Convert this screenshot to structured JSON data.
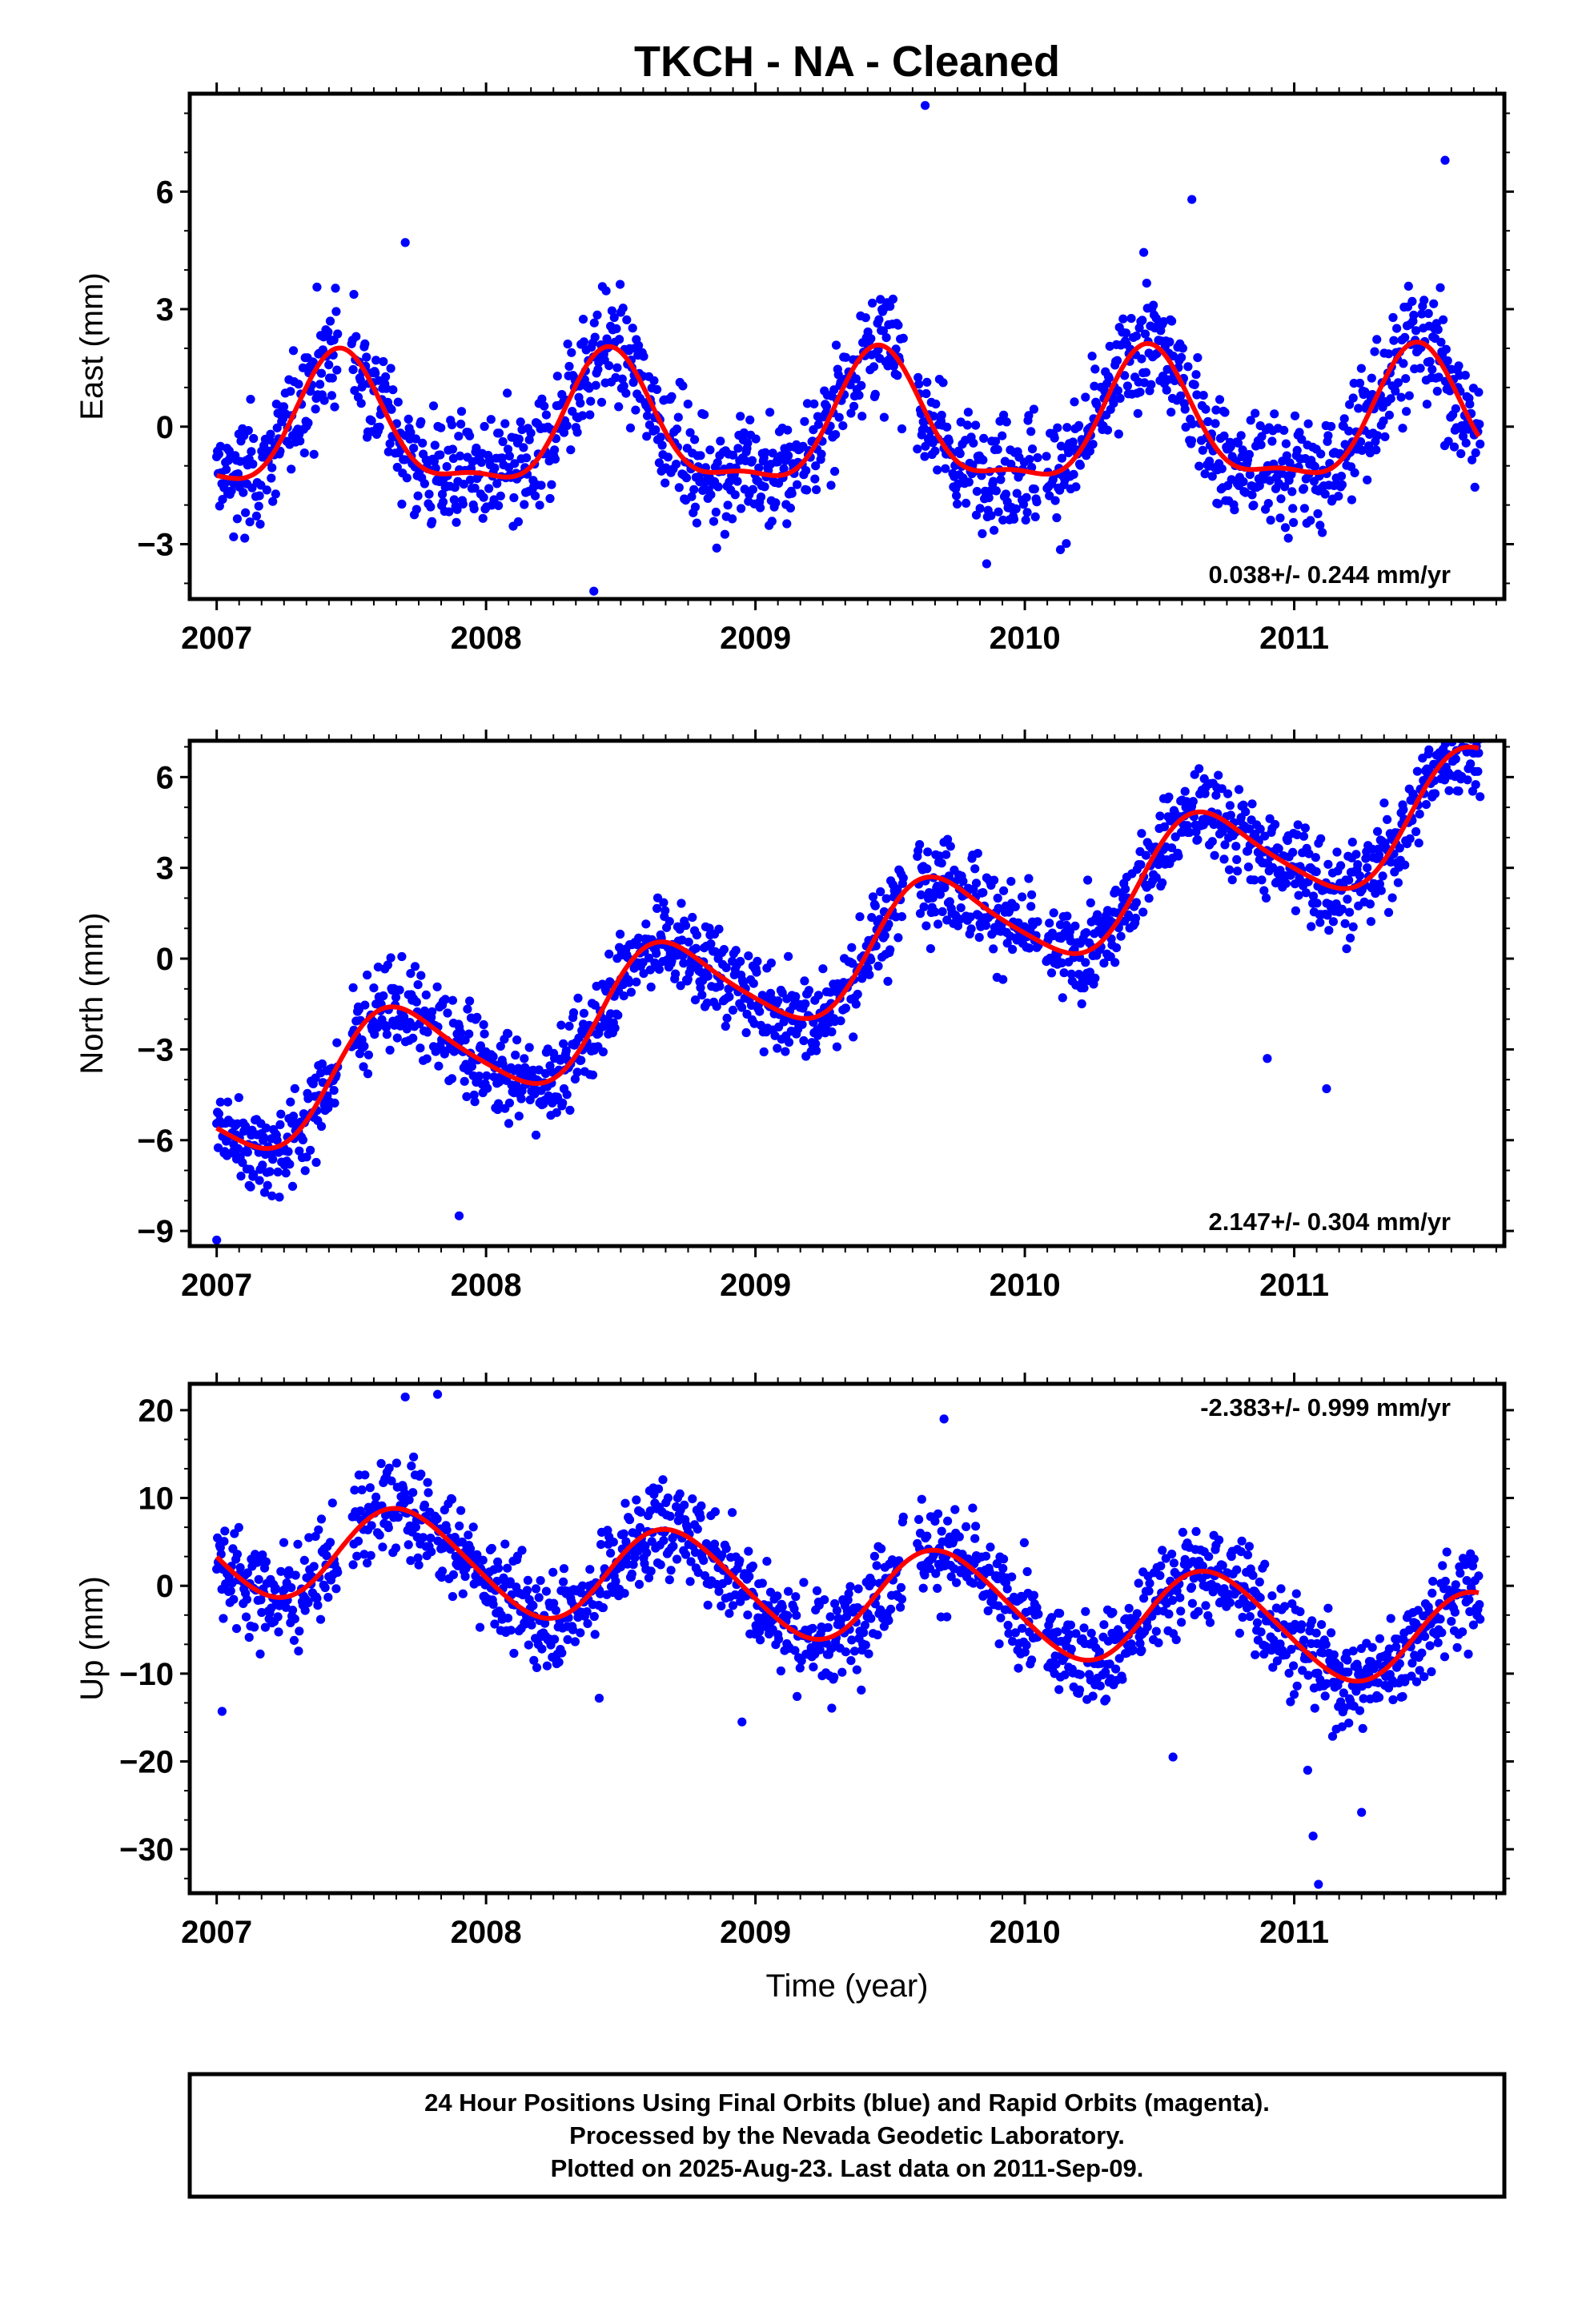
{
  "title": "TKCH  - NA - Cleaned",
  "colors": {
    "points": "#0000ff",
    "fit": "#ff0000",
    "axis": "#000000"
  },
  "chart_data": [
    {
      "type": "scatter",
      "ylabel": "East (mm)",
      "xlim": [
        2006.9,
        2011.78
      ],
      "ylim": [
        -4.4,
        8.5
      ],
      "yticks": [
        -3,
        0,
        3,
        6
      ],
      "xticks": [
        2007,
        2008,
        2009,
        2010,
        2011
      ],
      "rate": "0.038+/- 0.244 mm/yr",
      "rate_position": "bottom-right",
      "model": {
        "offset": -0.15,
        "trend": 0.038,
        "annual_cos": -1.55,
        "annual_sin": 0.4,
        "semi_cos": 0.45,
        "semi_sin": -0.3
      },
      "scatter_sd": 1.05,
      "outliers": [
        [
          2009.63,
          8.2
        ],
        [
          2011.56,
          6.8
        ],
        [
          2010.62,
          5.8
        ],
        [
          2008.4,
          -4.2
        ],
        [
          2007.7,
          4.7
        ]
      ]
    },
    {
      "type": "scatter",
      "ylabel": "North (mm)",
      "xlim": [
        2006.9,
        2011.78
      ],
      "ylim": [
        -9.5,
        7.2
      ],
      "yticks": [
        -9,
        -6,
        -3,
        0,
        3,
        6
      ],
      "xticks": [
        2007,
        2008,
        2009,
        2010,
        2011
      ],
      "rate": "2.147+/- 0.304 mm/yr",
      "rate_position": "bottom-right",
      "model": {
        "offset": -4.9,
        "trend": 2.147,
        "annual_cos": -0.9,
        "annual_sin": -1.55,
        "semi_cos": 0.2,
        "semi_sin": 0.2
      },
      "scatter_sd": 1.05,
      "outliers": [
        [
          2007.0,
          -9.3
        ],
        [
          2007.9,
          -8.5
        ],
        [
          2010.9,
          -3.3
        ],
        [
          2011.12,
          -4.3
        ],
        [
          2011.5,
          6.9
        ]
      ]
    },
    {
      "type": "scatter",
      "ylabel": "Up (mm)",
      "xlabel": "Time (year)",
      "xlim": [
        2006.9,
        2011.78
      ],
      "ylim": [
        -35,
        23
      ],
      "yticks": [
        -30,
        -20,
        -10,
        0,
        10,
        20
      ],
      "xticks": [
        2007,
        2008,
        2009,
        2010,
        2011
      ],
      "rate": "-2.383+/- 0.999 mm/yr",
      "rate_position": "top-right",
      "model": {
        "offset": 4.8,
        "trend": -2.383,
        "annual_cos": -1.8,
        "annual_sin": -5.2,
        "semi_cos": 0.3,
        "semi_sin": 0.4
      },
      "scatter_sd": 3.9,
      "outliers": [
        [
          2011.09,
          -34.0
        ],
        [
          2011.07,
          -28.5
        ],
        [
          2011.05,
          -21.0
        ],
        [
          2011.25,
          -25.8
        ],
        [
          2007.02,
          -14.3
        ],
        [
          2007.7,
          21.5
        ],
        [
          2007.82,
          21.8
        ],
        [
          2009.7,
          19.0
        ],
        [
          2008.42,
          -12.8
        ],
        [
          2010.55,
          -19.5
        ],
        [
          2008.95,
          -15.5
        ]
      ]
    }
  ],
  "footer": {
    "line1": "24 Hour Positions Using Final Orbits (blue) and Rapid Orbits (magenta).",
    "line2": "Processed by the Nevada Geodetic Laboratory.",
    "line3": "Plotted on 2025-Aug-23. Last data on 2011-Sep-09."
  }
}
